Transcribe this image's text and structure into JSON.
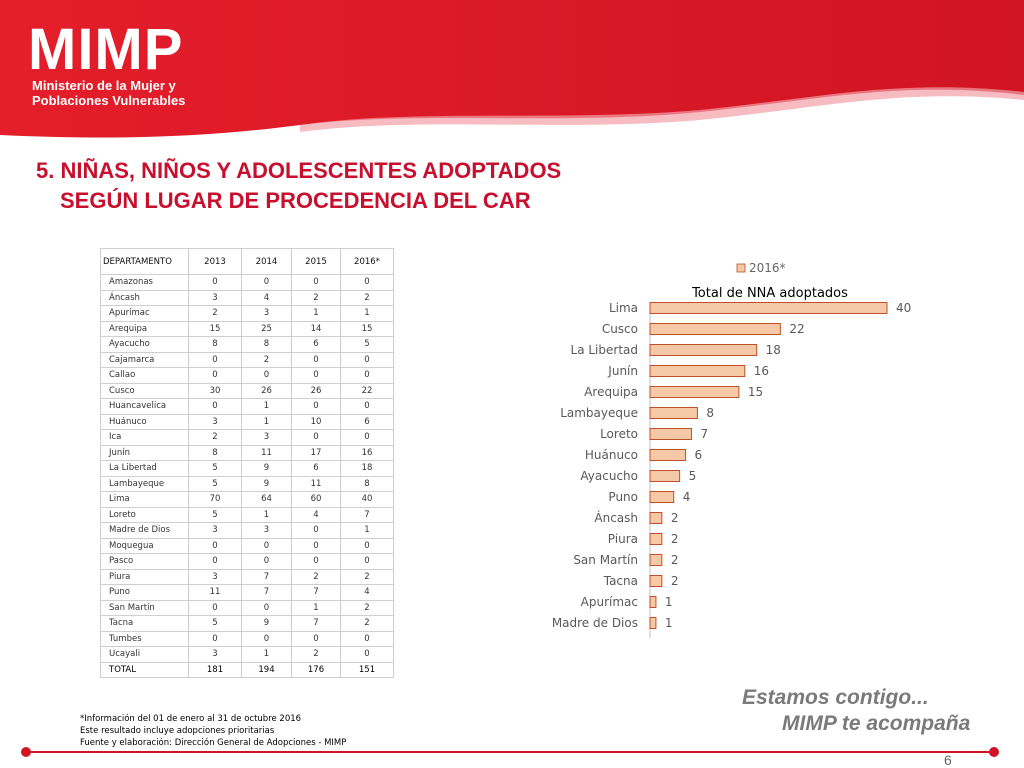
{
  "brand": {
    "logo_text": "MIMP",
    "logo_subtitle_line1": "Ministerio de la Mujer y",
    "logo_subtitle_line2": "Poblaciones Vulnerables",
    "accent_color": "#c8102e"
  },
  "title": {
    "line1": "5. NIÑAS, NIÑOS Y ADOLESCENTES ADOPTADOS",
    "line2": "SEGÚN LUGAR DE PROCEDENCIA DEL CAR"
  },
  "table": {
    "headers": [
      "DEPARTAMENTO",
      "2013",
      "2014",
      "2015",
      "2016*"
    ],
    "rows": [
      [
        "Amazonas",
        "0",
        "0",
        "0",
        "0"
      ],
      [
        "Áncash",
        "3",
        "4",
        "2",
        "2"
      ],
      [
        "Apurímac",
        "2",
        "3",
        "1",
        "1"
      ],
      [
        "Arequipa",
        "15",
        "25",
        "14",
        "15"
      ],
      [
        "Ayacucho",
        "8",
        "8",
        "6",
        "5"
      ],
      [
        "Cajamarca",
        "0",
        "2",
        "0",
        "0"
      ],
      [
        "Callao",
        "0",
        "0",
        "0",
        "0"
      ],
      [
        "Cusco",
        "30",
        "26",
        "26",
        "22"
      ],
      [
        "Huancavelica",
        "0",
        "1",
        "0",
        "0"
      ],
      [
        "Huánuco",
        "3",
        "1",
        "10",
        "6"
      ],
      [
        "Ica",
        "2",
        "3",
        "0",
        "0"
      ],
      [
        "Junín",
        "8",
        "11",
        "17",
        "16"
      ],
      [
        "La Libertad",
        "5",
        "9",
        "6",
        "18"
      ],
      [
        "Lambayeque",
        "5",
        "9",
        "11",
        "8"
      ],
      [
        "Lima",
        "70",
        "64",
        "60",
        "40"
      ],
      [
        "Loreto",
        "5",
        "1",
        "4",
        "7"
      ],
      [
        "Madre de Dios",
        "3",
        "3",
        "0",
        "1"
      ],
      [
        "Moquegua",
        "0",
        "0",
        "0",
        "0"
      ],
      [
        "Pasco",
        "0",
        "0",
        "0",
        "0"
      ],
      [
        "Piura",
        "3",
        "7",
        "2",
        "2"
      ],
      [
        "Puno",
        "11",
        "7",
        "7",
        "4"
      ],
      [
        "San Martín",
        "0",
        "0",
        "1",
        "2"
      ],
      [
        "Tacna",
        "5",
        "9",
        "7",
        "2"
      ],
      [
        "Tumbes",
        "0",
        "0",
        "0",
        "0"
      ],
      [
        "Ucayali",
        "3",
        "1",
        "2",
        "0"
      ]
    ],
    "total": [
      "TOTAL",
      "181",
      "194",
      "176",
      "151"
    ]
  },
  "chart_data": {
    "type": "bar",
    "orientation": "horizontal",
    "title": "Total de NNA adoptados",
    "legend_position": "top",
    "categories": [
      "Lima",
      "Cusco",
      "La Libertad",
      "Junín",
      "Arequipa",
      "Lambayeque",
      "Loreto",
      "Huánuco",
      "Ayacucho",
      "Puno",
      "Áncash",
      "Piura",
      "San Martín",
      "Tacna",
      "Apurímac",
      "Madre de Dios"
    ],
    "series": [
      {
        "name": "2016*",
        "values": [
          40,
          22,
          18,
          16,
          15,
          8,
          7,
          6,
          5,
          4,
          2,
          2,
          2,
          2,
          1,
          1
        ],
        "color": "#f5c9a6",
        "border_color": "#c0502a"
      }
    ],
    "xlim": [
      0,
      40
    ],
    "grid": false,
    "data_labels": true
  },
  "footnotes": [
    "*Información del 01 de enero al 31 de octubre 2016",
    "Este resultado incluye adopciones prioritarias",
    "Fuente y elaboración: Dirección General de Adopciones - MIMP"
  ],
  "slogan": {
    "line1": "Estamos contigo...",
    "line2": "MIMP te acompaña"
  },
  "page_number": "6"
}
